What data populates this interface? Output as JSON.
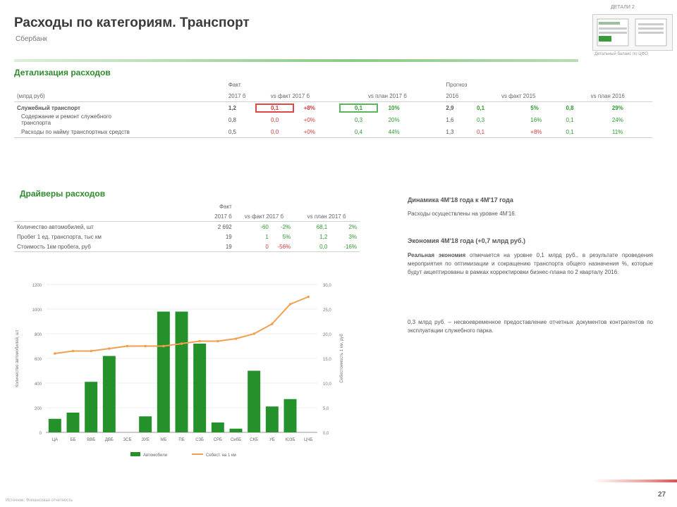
{
  "header": {
    "title": "Расходы по категориям. Транспорт",
    "subtitle": "Сбербанк"
  },
  "thumbnail": {
    "label": "ДЕТАЛИ 2",
    "caption": "Детальный баланс по ЦФО"
  },
  "detail": {
    "heading": "Детализация расходов",
    "unit": "(млрд руб)",
    "group_fact": "Факт",
    "group_forecast": "Прогноз",
    "columns": [
      "2017 б",
      "vs факт 2017 б",
      "",
      "vs план 2017 б",
      "",
      "2016",
      "vs факт 2015",
      "",
      "vs план 2016",
      ""
    ],
    "rows": [
      {
        "label": "Служебный транспорт",
        "values": [
          "1,2",
          "0,1",
          "+8%",
          "0,1",
          "10%",
          "2,9",
          "0,1",
          "5%",
          "0,8",
          "29%"
        ]
      },
      {
        "label": "Содержание и ремонт служебного",
        "label2": "транспорта",
        "values": [
          "0,8",
          "0,0",
          "+0%",
          "0,3",
          "20%",
          "1,6",
          "0,3",
          "16%",
          "0,1",
          "24%"
        ]
      },
      {
        "label": "Расходы по найму транспортных средств",
        "values": [
          "0,5",
          "0,0",
          "+0%",
          "0,4",
          "44%",
          "1,3",
          "0,1",
          "+8%",
          "0,1",
          "11%"
        ]
      }
    ]
  },
  "drivers": {
    "heading": "Драйверы расходов",
    "group_fact": "Факт",
    "columns": [
      "2017 б",
      "vs факт 2017 б",
      "",
      "vs план 2017 б",
      ""
    ],
    "rows": [
      {
        "label": "Количество автомобилей, шт",
        "values": [
          "2 692",
          "-60",
          "-2%",
          "68,1",
          "2%"
        ]
      },
      {
        "label": "Пробег 1 ед. транспорта, тыс км",
        "values": [
          "19",
          "1",
          "5%",
          "1,2",
          "3%"
        ]
      },
      {
        "label": "Стоимость 1км пробега, руб",
        "values": [
          "19",
          "0",
          "-56%",
          "0,0",
          "-16%"
        ]
      }
    ]
  },
  "text": {
    "h1": "Динамика 4М'18 года к 4М'17 года",
    "p1": "Расходы осуществлены на уровне 4М'16.",
    "h2": "Экономия 4М'18 года (+0,7 млрд руб.)",
    "p2_bold": "Реальная экономия",
    "p2": " отмечается на уровне 0,1 млрд руб., в результате проведения мероприятия по оптимизации и сокращению транспорта общего назначения %, которые будут акцептированы в рамках корректировки бизнес-плана по 2 кварталу 2016.",
    "p3": "0,3 млрд руб. – несвоевременное предоставление отчетных документов контрагентов по эксплуатации служебного парка."
  },
  "chart_data": {
    "type": "bar",
    "categories": [
      "ЦА",
      "ББ",
      "ВВБ",
      "ДВБ",
      "ЗСБ",
      "ЗУБ",
      "МБ",
      "ПБ",
      "СЗБ",
      "СРБ",
      "СибБ",
      "СКБ",
      "УБ",
      "ЮЗБ",
      "ЦЧБ"
    ],
    "y_ticks_left": [
      "0",
      "200",
      "400",
      "600",
      "800",
      "1000",
      "1200"
    ],
    "y_ticks_right": [
      "0,0",
      "5,0",
      "10,0",
      "15,0",
      "20,0",
      "25,0",
      "30,0"
    ],
    "series": [
      {
        "name": "Автомобили",
        "type": "bar",
        "values": [
          110,
          160,
          410,
          620,
          0,
          130,
          980,
          980,
          720,
          80,
          30,
          500,
          210,
          270,
          0
        ]
      },
      {
        "name": "Себест. на 1 км",
        "type": "line",
        "values": [
          16.0,
          16.5,
          16.5,
          17.0,
          17.5,
          17.5,
          17.5,
          18.0,
          18.5,
          18.5,
          19.0,
          20.0,
          22.0,
          26.0,
          27.5
        ]
      }
    ],
    "ylim": [
      0,
      1200
    ],
    "ylim_right": [
      0,
      30
    ],
    "ylabel": "Количество автомобилей, шт",
    "ylabel_right": "Себестоимость 1 км, руб",
    "legend_position": "bottom"
  },
  "footer": {
    "note": "Источник: Финансовая отчетность",
    "page": "27"
  },
  "colors": {
    "accent_green": "#2e9b2e",
    "accent_red": "#d43a3a",
    "bar": "#24912a",
    "line": "#f0a050"
  }
}
